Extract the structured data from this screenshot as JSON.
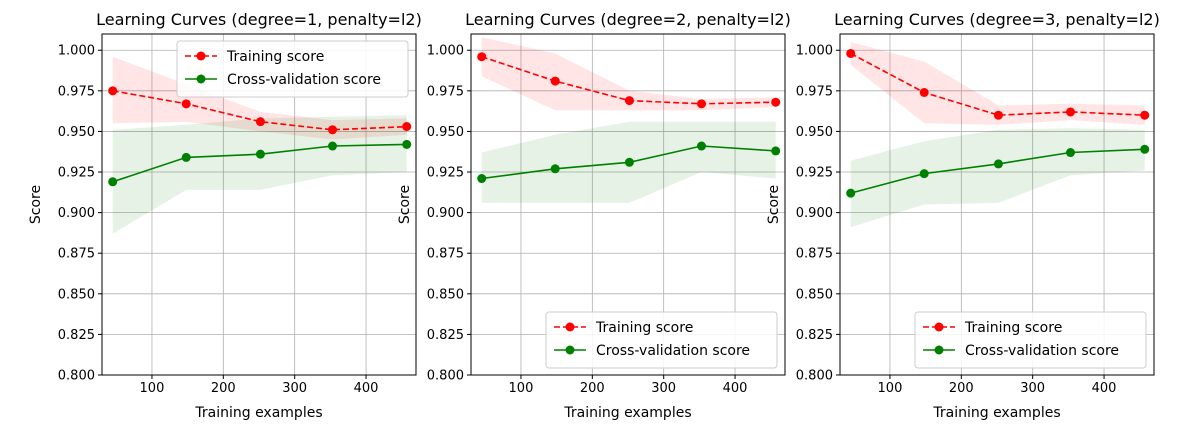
{
  "chart_data": [
    {
      "type": "line",
      "title": "Learning Curves (degree=1, penalty=l2)",
      "xlabel": "Training examples",
      "ylabel": "Score",
      "xlim": [
        30,
        470
      ],
      "ylim": [
        0.8,
        1.01
      ],
      "xticks": [
        100,
        200,
        300,
        400
      ],
      "yticks": [
        0.8,
        0.825,
        0.85,
        0.875,
        0.9,
        0.925,
        0.95,
        0.975,
        1.0
      ],
      "xtick_labels": [
        "100",
        "200",
        "300",
        "400"
      ],
      "ytick_labels": [
        "0.800",
        "0.825",
        "0.850",
        "0.875",
        "0.900",
        "0.925",
        "0.950",
        "0.975",
        "1.000"
      ],
      "grid": true,
      "legend_position": "top-right",
      "x": [
        45,
        148,
        252,
        353,
        457
      ],
      "series": [
        {
          "name": "Training score",
          "color": "#ff0000",
          "style": "dashed",
          "values": [
            0.975,
            0.967,
            0.956,
            0.951,
            0.953
          ],
          "band_upper": [
            0.996,
            0.979,
            0.962,
            0.957,
            0.958
          ],
          "band_lower": [
            0.955,
            0.956,
            0.95,
            0.945,
            0.948
          ]
        },
        {
          "name": "Cross-validation score",
          "color": "#008000",
          "style": "solid",
          "values": [
            0.919,
            0.934,
            0.936,
            0.941,
            0.942
          ],
          "band_upper": [
            0.951,
            0.954,
            0.958,
            0.959,
            0.96
          ],
          "band_lower": [
            0.887,
            0.914,
            0.914,
            0.923,
            0.925
          ]
        }
      ]
    },
    {
      "type": "line",
      "title": "Learning Curves (degree=2, penalty=l2)",
      "xlabel": "Training examples",
      "ylabel": "Score",
      "xlim": [
        30,
        470
      ],
      "ylim": [
        0.8,
        1.01
      ],
      "xticks": [
        100,
        200,
        300,
        400
      ],
      "yticks": [
        0.8,
        0.825,
        0.85,
        0.875,
        0.9,
        0.925,
        0.95,
        0.975,
        1.0
      ],
      "xtick_labels": [
        "100",
        "200",
        "300",
        "400"
      ],
      "ytick_labels": [
        "0.800",
        "0.825",
        "0.850",
        "0.875",
        "0.900",
        "0.925",
        "0.950",
        "0.975",
        "1.000"
      ],
      "grid": true,
      "legend_position": "bottom-right",
      "x": [
        45,
        148,
        252,
        353,
        457
      ],
      "series": [
        {
          "name": "Training score",
          "color": "#ff0000",
          "style": "dashed",
          "values": [
            0.996,
            0.981,
            0.969,
            0.967,
            0.968
          ],
          "band_upper": [
            1.008,
            0.998,
            0.975,
            0.97,
            0.971
          ],
          "band_lower": [
            0.984,
            0.963,
            0.963,
            0.963,
            0.965
          ]
        },
        {
          "name": "Cross-validation score",
          "color": "#008000",
          "style": "solid",
          "values": [
            0.921,
            0.927,
            0.931,
            0.941,
            0.938
          ],
          "band_upper": [
            0.937,
            0.948,
            0.956,
            0.956,
            0.956
          ],
          "band_lower": [
            0.906,
            0.906,
            0.906,
            0.925,
            0.921
          ]
        }
      ]
    },
    {
      "type": "line",
      "title": "Learning Curves (degree=3, penalty=l2)",
      "xlabel": "Training examples",
      "ylabel": "Score",
      "xlim": [
        30,
        470
      ],
      "ylim": [
        0.8,
        1.01
      ],
      "xticks": [
        100,
        200,
        300,
        400
      ],
      "yticks": [
        0.8,
        0.825,
        0.85,
        0.875,
        0.9,
        0.925,
        0.95,
        0.975,
        1.0
      ],
      "xtick_labels": [
        "100",
        "200",
        "300",
        "400"
      ],
      "ytick_labels": [
        "0.800",
        "0.825",
        "0.850",
        "0.875",
        "0.900",
        "0.925",
        "0.950",
        "0.975",
        "1.000"
      ],
      "grid": true,
      "legend_position": "bottom-right",
      "x": [
        45,
        148,
        252,
        353,
        457
      ],
      "series": [
        {
          "name": "Training score",
          "color": "#ff0000",
          "style": "dashed",
          "values": [
            0.998,
            0.974,
            0.96,
            0.962,
            0.96
          ],
          "band_upper": [
            1.005,
            0.993,
            0.966,
            0.967,
            0.966
          ],
          "band_lower": [
            0.991,
            0.955,
            0.954,
            0.957,
            0.954
          ]
        },
        {
          "name": "Cross-validation score",
          "color": "#008000",
          "style": "solid",
          "values": [
            0.912,
            0.924,
            0.93,
            0.937,
            0.939
          ],
          "band_upper": [
            0.932,
            0.944,
            0.951,
            0.952,
            0.951
          ],
          "band_lower": [
            0.891,
            0.905,
            0.906,
            0.923,
            0.926
          ]
        }
      ]
    }
  ]
}
